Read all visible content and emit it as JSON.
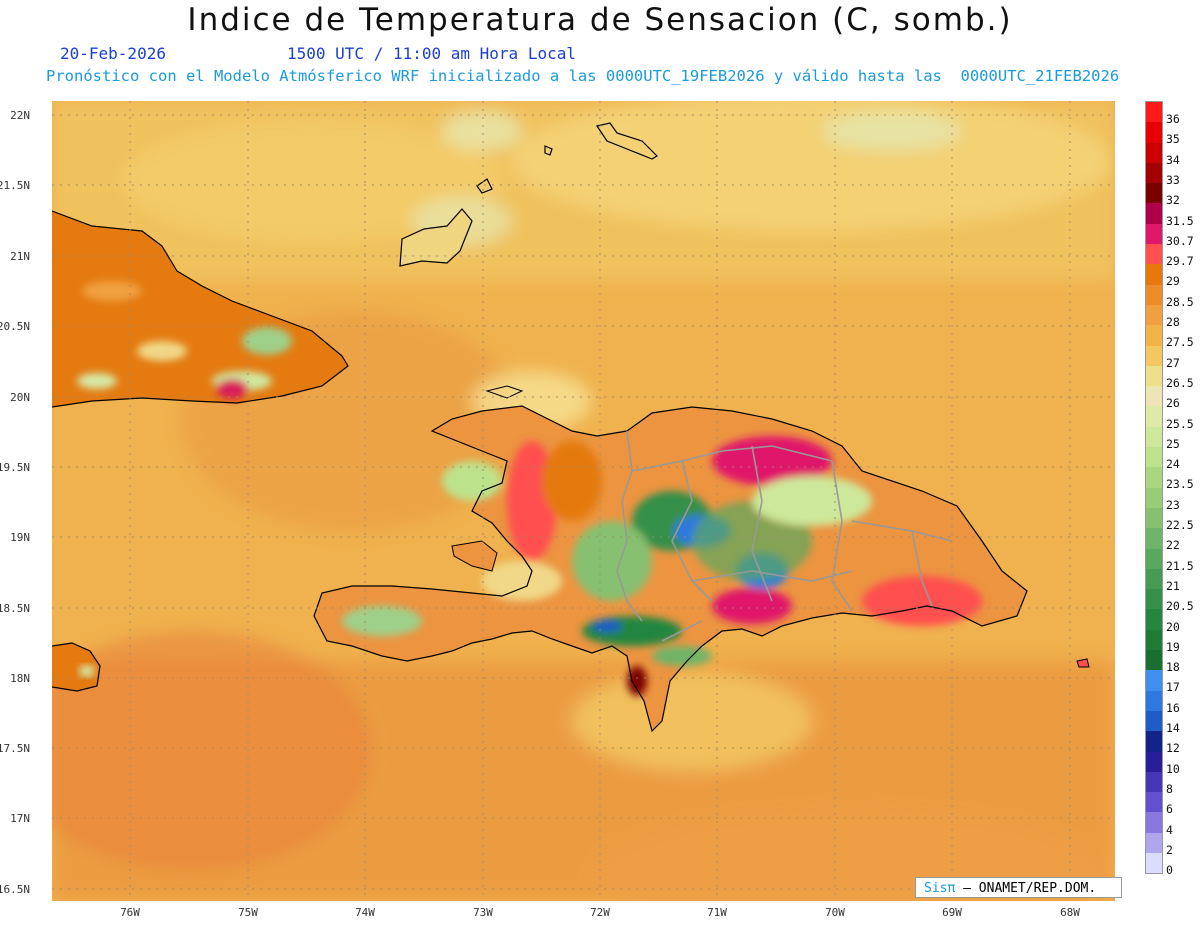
{
  "header": {
    "title": "Indice de Temperatura de Sensacion (C, somb.)",
    "date": "20-Feb-2026",
    "time": "1500 UTC / 11:00 am Hora Local",
    "model_line": "Pronóstico con el Modelo Atmósferico WRF inicializado a las 0000UTC_19FEB2026 y válido hasta las  0000UTC_21FEB2026"
  },
  "axes": {
    "lat_labels": [
      "22N",
      "21.5N",
      "21N",
      "20.5N",
      "20N",
      "19.5N",
      "19N",
      "18.5N",
      "18N",
      "17.5N",
      "17N",
      "16.5N"
    ],
    "lon_labels": [
      "76W",
      "75W",
      "74W",
      "73W",
      "72W",
      "71W",
      "70W",
      "69W",
      "68W"
    ]
  },
  "colorbar": {
    "labels": [
      "36",
      "35",
      "34",
      "33",
      "32",
      "31.5",
      "30.7",
      "29.7",
      "29",
      "28.5",
      "28",
      "27.5",
      "27",
      "26.5",
      "26",
      "25.5",
      "25",
      "24",
      "23.5",
      "23",
      "22.5",
      "22",
      "21.5",
      "21",
      "20.5",
      "20",
      "19",
      "18",
      "17",
      "16",
      "14",
      "12",
      "10",
      "8",
      "6",
      "4",
      "2",
      "0"
    ],
    "colors": [
      "#ff1a1a",
      "#e80000",
      "#cc0000",
      "#a40000",
      "#7a0000",
      "#b0004a",
      "#e0186a",
      "#ff4f4f",
      "#e8780c",
      "#ee8c2a",
      "#f0a040",
      "#f2b448",
      "#f4c860",
      "#f0df8a",
      "#ede6b4",
      "#dfeaa8",
      "#cde89a",
      "#bde28c",
      "#aad680",
      "#98cc78",
      "#86c070",
      "#70b468",
      "#5aa85e",
      "#469c54",
      "#34904a",
      "#248640",
      "#1e7c38",
      "#177030",
      "#3f8ff0",
      "#2f78e0",
      "#1e5cc8",
      "#12238a",
      "#2a1d9a",
      "#4636b8",
      "#6250d0",
      "#8a78e0",
      "#b0a6ee",
      "#dcdcff"
    ]
  },
  "credit": {
    "brand": "Sisπ",
    "text": " – ONAMET/REP.DOM."
  }
}
